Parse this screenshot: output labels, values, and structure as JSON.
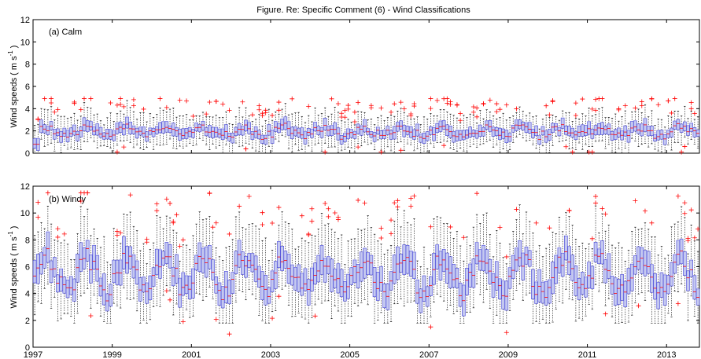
{
  "figure": {
    "title": "Figure. Re: Specific Comment (6) - Wind Classifications"
  },
  "chart_data": [
    {
      "type": "box",
      "panel_label": "(a) Calm",
      "ylabel": "Wind speeds ( m s⁻¹ )",
      "ylabel_main": "Wind speeds ( m s",
      "ylabel_sup": "-1",
      "ylabel_end": " )",
      "ylim": [
        0,
        12
      ],
      "yticks": [
        0,
        2,
        4,
        6,
        8,
        10,
        12
      ],
      "xlim": [
        "1997-01",
        "2013-10"
      ],
      "xticks": [
        "1997",
        "1999",
        "2001",
        "2003",
        "2005",
        "2007",
        "2009",
        "2011",
        "2013"
      ],
      "series": [
        {
          "value_range": [
            0,
            4.2
          ],
          "monthly_median_approx": 2.0,
          "outliers_max_approx": 4.9,
          "median_min": 0.7,
          "median_max": 3.0
        }
      ]
    },
    {
      "type": "box",
      "panel_label": "(b) Windy",
      "ylabel": "Wind speeds ( m s⁻¹ )",
      "ylabel_main": "Wind speeds ( m s",
      "ylabel_sup": "-1",
      "ylabel_end": " )",
      "ylim": [
        0,
        12
      ],
      "yticks": [
        0,
        2,
        4,
        6,
        8,
        10,
        12
      ],
      "xlim": [
        "1997-01",
        "2013-10"
      ],
      "xticks": [
        "1997",
        "1999",
        "2001",
        "2003",
        "2005",
        "2007",
        "2009",
        "2011",
        "2013"
      ],
      "series": [
        {
          "monthly_median_approx": 5.5,
          "median_min": 3.0,
          "median_max": 7.5,
          "outliers_max_approx": 11.5,
          "whisker_min_approx": 1.8
        }
      ]
    }
  ],
  "style": {
    "box_fill": "#c4c8f0",
    "box_stroke": "#4646d8",
    "median_color": "#ff0000",
    "outlier_color": "#ff0000",
    "whisker_color": "#000000"
  }
}
